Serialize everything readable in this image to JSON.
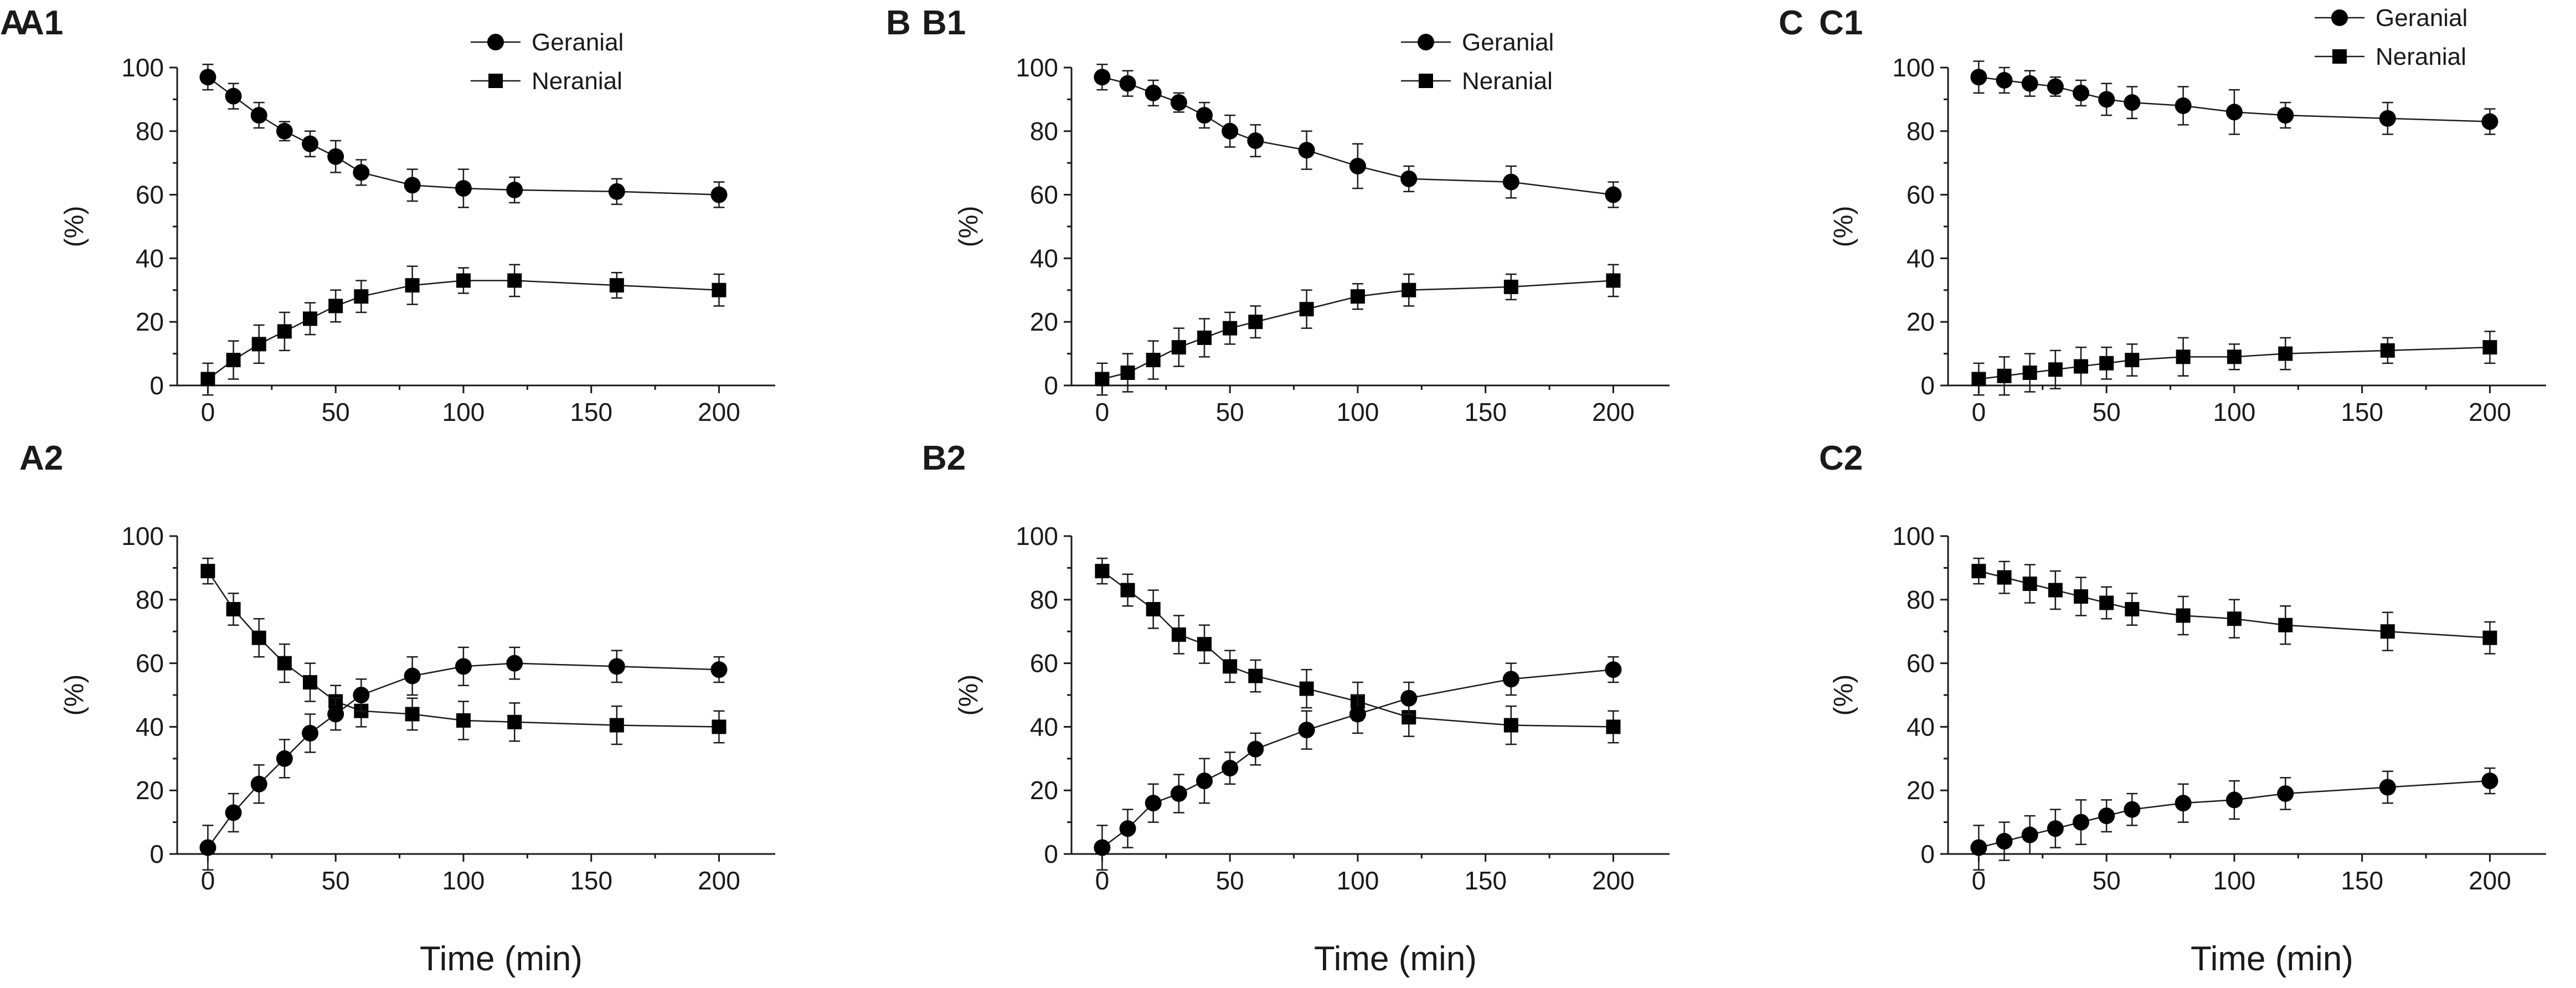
{
  "figure": {
    "panel_letters": [
      "A",
      "B",
      "C"
    ],
    "xlabel": "Time (min)"
  },
  "chart_data": [
    {
      "id": "A1",
      "type": "line",
      "panel": "A1",
      "xlabel": "",
      "ylabel": "(%)",
      "xlim": [
        -12,
        222
      ],
      "ylim": [
        0,
        100
      ],
      "xticks": [
        0,
        50,
        100,
        150,
        200
      ],
      "yticks": [
        0,
        20,
        40,
        60,
        80,
        100
      ],
      "legend": "top-center",
      "x": [
        0,
        10,
        20,
        30,
        40,
        50,
        60,
        80,
        100,
        120,
        160,
        200
      ],
      "series": [
        {
          "name": "Geranial",
          "marker": "circle",
          "values": [
            97,
            91,
            85,
            80,
            76,
            72,
            67,
            63,
            62,
            61.5,
            61,
            60
          ],
          "errors": [
            4,
            4,
            4,
            3,
            4,
            5,
            4,
            5,
            6,
            4,
            4,
            4
          ]
        },
        {
          "name": "Neranial",
          "marker": "square",
          "values": [
            2,
            8,
            13,
            17,
            21,
            25,
            28,
            31.5,
            33,
            33,
            31.5,
            30
          ],
          "errors": [
            5,
            6,
            6,
            6,
            5,
            5,
            5,
            6,
            4,
            5,
            4,
            5
          ]
        }
      ]
    },
    {
      "id": "B1",
      "type": "line",
      "panel": "B1",
      "xlabel": "",
      "ylabel": "(%)",
      "xlim": [
        -12,
        222
      ],
      "ylim": [
        0,
        100
      ],
      "xticks": [
        0,
        50,
        100,
        150,
        200
      ],
      "yticks": [
        0,
        20,
        40,
        60,
        80,
        100
      ],
      "legend": "top-center",
      "x": [
        0,
        10,
        20,
        30,
        40,
        50,
        60,
        80,
        100,
        120,
        160,
        200
      ],
      "series": [
        {
          "name": "Geranial",
          "marker": "circle",
          "values": [
            97,
            95,
            92,
            89,
            85,
            80,
            77,
            74,
            69,
            65,
            64,
            60
          ],
          "errors": [
            4,
            4,
            4,
            3,
            4,
            5,
            5,
            6,
            7,
            4,
            5,
            4
          ]
        },
        {
          "name": "Neranial",
          "marker": "square",
          "values": [
            2,
            4,
            8,
            12,
            15,
            18,
            20,
            24,
            28,
            30,
            31,
            33
          ],
          "errors": [
            5,
            6,
            6,
            6,
            6,
            5,
            5,
            6,
            4,
            5,
            4,
            5
          ]
        }
      ]
    },
    {
      "id": "C1",
      "type": "line",
      "panel": "C1",
      "xlabel": "",
      "ylabel": "(%)",
      "xlim": [
        -12,
        222
      ],
      "ylim": [
        0,
        100
      ],
      "xticks": [
        0,
        50,
        100,
        150,
        200
      ],
      "yticks": [
        0,
        20,
        40,
        60,
        80,
        100
      ],
      "legend": "top-center",
      "x": [
        0,
        10,
        20,
        30,
        40,
        50,
        60,
        80,
        100,
        120,
        160,
        200
      ],
      "series": [
        {
          "name": "Geranial",
          "marker": "circle",
          "values": [
            97,
            96,
            95,
            94,
            92,
            90,
            89,
            88,
            86,
            85,
            84,
            83
          ],
          "errors": [
            5,
            4,
            4,
            3,
            4,
            5,
            5,
            6,
            7,
            4,
            5,
            4
          ]
        },
        {
          "name": "Neranial",
          "marker": "square",
          "values": [
            2,
            3,
            4,
            5,
            6,
            7,
            8,
            9,
            9,
            10,
            11,
            12
          ],
          "errors": [
            5,
            6,
            6,
            6,
            6,
            5,
            5,
            6,
            4,
            5,
            4,
            5
          ]
        }
      ]
    },
    {
      "id": "A2",
      "type": "line",
      "panel": "A2",
      "xlabel": "Time (min)",
      "ylabel": "(%)",
      "xlim": [
        -12,
        222
      ],
      "ylim": [
        0,
        100
      ],
      "xticks": [
        0,
        50,
        100,
        150,
        200
      ],
      "yticks": [
        0,
        20,
        40,
        60,
        80,
        100
      ],
      "legend": "none",
      "x": [
        0,
        10,
        20,
        30,
        40,
        50,
        60,
        80,
        100,
        120,
        160,
        200
      ],
      "series": [
        {
          "name": "Neranial",
          "marker": "square",
          "values": [
            89,
            77,
            68,
            60,
            54,
            48,
            45,
            44,
            42,
            41.5,
            40.5,
            40
          ],
          "errors": [
            4,
            5,
            6,
            6,
            6,
            5,
            5,
            5,
            6,
            6,
            6,
            5
          ]
        },
        {
          "name": "Geranial",
          "marker": "circle",
          "values": [
            2,
            13,
            22,
            30,
            38,
            44,
            50,
            56,
            59,
            60,
            59,
            58
          ],
          "errors": [
            7,
            6,
            6,
            6,
            6,
            5,
            5,
            6,
            6,
            5,
            5,
            4
          ]
        }
      ]
    },
    {
      "id": "B2",
      "type": "line",
      "panel": "B2",
      "xlabel": "Time (min)",
      "ylabel": "(%)",
      "xlim": [
        -12,
        222
      ],
      "ylim": [
        0,
        100
      ],
      "xticks": [
        0,
        50,
        100,
        150,
        200
      ],
      "yticks": [
        0,
        20,
        40,
        60,
        80,
        100
      ],
      "legend": "none",
      "x": [
        0,
        10,
        20,
        30,
        40,
        50,
        60,
        80,
        100,
        120,
        160,
        200
      ],
      "series": [
        {
          "name": "Neranial",
          "marker": "square",
          "values": [
            89,
            83,
            77,
            69,
            66,
            59,
            56,
            52,
            48,
            43,
            40.5,
            40
          ],
          "errors": [
            4,
            5,
            6,
            6,
            6,
            5,
            5,
            6,
            6,
            6,
            6,
            5
          ]
        },
        {
          "name": "Geranial",
          "marker": "circle",
          "values": [
            2,
            8,
            16,
            19,
            23,
            27,
            33,
            39,
            44,
            49,
            55,
            58
          ],
          "errors": [
            7,
            6,
            6,
            6,
            7,
            5,
            5,
            6,
            6,
            5,
            5,
            4
          ]
        }
      ]
    },
    {
      "id": "C2",
      "type": "line",
      "panel": "C2",
      "xlabel": "Time (min)",
      "ylabel": "(%)",
      "xlim": [
        -12,
        222
      ],
      "ylim": [
        0,
        100
      ],
      "xticks": [
        0,
        50,
        100,
        150,
        200
      ],
      "yticks": [
        0,
        20,
        40,
        60,
        80,
        100
      ],
      "legend": "none",
      "x": [
        0,
        10,
        20,
        30,
        40,
        50,
        60,
        80,
        100,
        120,
        160,
        200
      ],
      "series": [
        {
          "name": "Neranial",
          "marker": "square",
          "values": [
            89,
            87,
            85,
            83,
            81,
            79,
            77,
            75,
            74,
            72,
            70,
            68
          ],
          "errors": [
            4,
            5,
            6,
            6,
            6,
            5,
            5,
            6,
            6,
            6,
            6,
            5
          ]
        },
        {
          "name": "Geranial",
          "marker": "circle",
          "values": [
            2,
            4,
            6,
            8,
            10,
            12,
            14,
            16,
            17,
            19,
            21,
            23
          ],
          "errors": [
            7,
            6,
            6,
            6,
            7,
            5,
            5,
            6,
            6,
            5,
            5,
            4
          ]
        }
      ]
    }
  ]
}
